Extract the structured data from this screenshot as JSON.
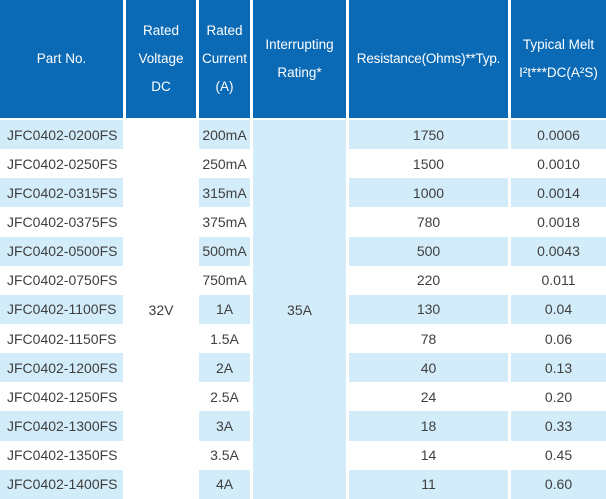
{
  "colors": {
    "header_bg": "#0a6ab5",
    "stripe_bg": "#d3ecfa",
    "row_bg": "#ffffff",
    "header_text": "#ffffff",
    "body_text": "#3f3f3f",
    "separator": "#ffffff"
  },
  "table": {
    "columns": [
      {
        "id": "part_no",
        "label_lines": [
          "Part No."
        ]
      },
      {
        "id": "rated_voltage",
        "label_lines": [
          "Rated",
          "Voltage",
          "DC"
        ]
      },
      {
        "id": "rated_current",
        "label_lines": [
          "Rated",
          "Current",
          "(A)"
        ]
      },
      {
        "id": "interrupting_rating",
        "label_lines": [
          "Interrupting",
          "Rating*"
        ]
      },
      {
        "id": "resistance",
        "label_lines": [
          "Resistance(Ohms)**Typ."
        ]
      },
      {
        "id": "typical_melt",
        "label_lines": [
          "Typical Melt",
          "I²t***DC(A²S)"
        ]
      }
    ],
    "merged_cells": {
      "rated_voltage_dc": "32V",
      "interrupting_rating": "35A"
    },
    "rows": [
      {
        "part_no": "JFC0402-0200FS",
        "rated_current": "200mA",
        "resistance": "1750",
        "melt_i2t": "0.0006"
      },
      {
        "part_no": "JFC0402-0250FS",
        "rated_current": "250mA",
        "resistance": "1500",
        "melt_i2t": "0.0010"
      },
      {
        "part_no": "JFC0402-0315FS",
        "rated_current": "315mA",
        "resistance": "1000",
        "melt_i2t": "0.0014"
      },
      {
        "part_no": "JFC0402-0375FS",
        "rated_current": "375mA",
        "resistance": "780",
        "melt_i2t": "0.0018"
      },
      {
        "part_no": "JFC0402-0500FS",
        "rated_current": "500mA",
        "resistance": "500",
        "melt_i2t": "0.0043"
      },
      {
        "part_no": "JFC0402-0750FS",
        "rated_current": "750mA",
        "resistance": "220",
        "melt_i2t": "0.011"
      },
      {
        "part_no": "JFC0402-1100FS",
        "rated_current": "1A",
        "resistance": "130",
        "melt_i2t": "0.04"
      },
      {
        "part_no": "JFC0402-1150FS",
        "rated_current": "1.5A",
        "resistance": "78",
        "melt_i2t": "0.06"
      },
      {
        "part_no": "JFC0402-1200FS",
        "rated_current": "2A",
        "resistance": "40",
        "melt_i2t": "0.13"
      },
      {
        "part_no": "JFC0402-1250FS",
        "rated_current": "2.5A",
        "resistance": "24",
        "melt_i2t": "0.20"
      },
      {
        "part_no": "JFC0402-1300FS",
        "rated_current": "3A",
        "resistance": "18",
        "melt_i2t": "0.33"
      },
      {
        "part_no": "JFC0402-1350FS",
        "rated_current": "3.5A",
        "resistance": "14",
        "melt_i2t": "0.45"
      },
      {
        "part_no": "JFC0402-1400FS",
        "rated_current": "4A",
        "resistance": "11",
        "melt_i2t": "0.60"
      }
    ]
  }
}
